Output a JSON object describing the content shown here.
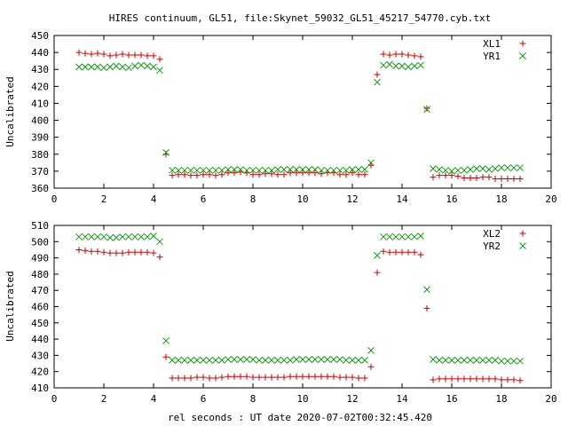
{
  "title": "HIRES continuum, GL51, file:Skynet_59032_GL51_45217_54770.cyb.txt",
  "xlabel": "rel seconds : UT date 2020-07-02T00:32:45.420",
  "colors": {
    "series_a": "#cc0000",
    "series_b": "#109a10",
    "axis": "#000000"
  },
  "chart_data": [
    {
      "type": "scatter",
      "ylabel": "Uncalibrated",
      "xlim": [
        0,
        20
      ],
      "ylim": [
        360,
        450
      ],
      "xticks": [
        0,
        2,
        4,
        6,
        8,
        10,
        12,
        14,
        16,
        18,
        20
      ],
      "yticks": [
        360,
        370,
        380,
        390,
        400,
        410,
        420,
        430,
        440,
        450
      ],
      "legend_position": "top-right",
      "grid": false,
      "series": [
        {
          "name": "XL1",
          "marker": "plus",
          "x": [
            1.0,
            1.25,
            1.5,
            1.75,
            2.0,
            2.25,
            2.5,
            2.75,
            3.0,
            3.25,
            3.5,
            3.75,
            4.0,
            4.25,
            4.5,
            4.75,
            5.0,
            5.25,
            5.5,
            5.75,
            6.0,
            6.25,
            6.5,
            6.75,
            7.0,
            7.25,
            7.5,
            7.75,
            8.0,
            8.25,
            8.5,
            8.75,
            9.0,
            9.25,
            9.5,
            9.75,
            10.0,
            10.25,
            10.5,
            10.75,
            11.0,
            11.25,
            11.5,
            11.75,
            12.0,
            12.25,
            12.5,
            12.75,
            13.0,
            13.25,
            13.5,
            13.75,
            14.0,
            14.25,
            14.5,
            14.75,
            15.0,
            15.25,
            15.5,
            15.75,
            16.0,
            16.25,
            16.5,
            16.75,
            17.0,
            17.25,
            17.5,
            17.75,
            18.0,
            18.25,
            18.5,
            18.75
          ],
          "y": [
            440,
            439.5,
            439,
            439.5,
            439,
            438,
            438.5,
            439,
            438.5,
            438.5,
            438.5,
            438,
            438,
            436,
            380,
            367.5,
            368,
            368,
            367.5,
            367.5,
            368,
            368,
            367.5,
            368,
            369,
            369,
            369.5,
            369,
            368,
            368,
            368.5,
            368.5,
            368,
            368,
            369,
            369,
            369,
            369,
            369,
            368.5,
            369,
            369,
            368,
            368,
            369,
            368,
            368,
            373.5,
            427,
            439,
            438.5,
            439,
            439,
            438.5,
            438,
            437.5,
            407,
            366.5,
            367.5,
            367.5,
            367.5,
            367,
            366,
            366,
            366,
            366.5,
            366.5,
            365.5,
            365.5,
            365.5,
            365.5,
            365.5
          ]
        },
        {
          "name": "YR1",
          "marker": "x",
          "x": [
            1.0,
            1.25,
            1.5,
            1.75,
            2.0,
            2.25,
            2.5,
            2.75,
            3.0,
            3.25,
            3.5,
            3.75,
            4.0,
            4.25,
            4.5,
            4.75,
            5.0,
            5.25,
            5.5,
            5.75,
            6.0,
            6.25,
            6.5,
            6.75,
            7.0,
            7.25,
            7.5,
            7.75,
            8.0,
            8.25,
            8.5,
            8.75,
            9.0,
            9.25,
            9.5,
            9.75,
            10.0,
            10.25,
            10.5,
            10.75,
            11.0,
            11.25,
            11.5,
            11.75,
            12.0,
            12.25,
            12.5,
            12.75,
            13.0,
            13.25,
            13.5,
            13.75,
            14.0,
            14.25,
            14.5,
            14.75,
            15.0,
            15.25,
            15.5,
            15.75,
            16.0,
            16.25,
            16.5,
            16.75,
            17.0,
            17.25,
            17.5,
            17.75,
            18.0,
            18.25,
            18.5,
            18.75
          ],
          "y": [
            431.5,
            431.5,
            431.5,
            431.5,
            431,
            431.5,
            432,
            431.5,
            431,
            432,
            432.5,
            432,
            431.5,
            429.5,
            381,
            370.5,
            370.5,
            370.5,
            370.5,
            370.5,
            370.5,
            370.5,
            370.5,
            370.5,
            371,
            371,
            371,
            370.5,
            370.5,
            370.5,
            370.5,
            370.5,
            371,
            371,
            371,
            371,
            371,
            371,
            371,
            370.5,
            370.5,
            370.5,
            370.5,
            370.5,
            371,
            371,
            371,
            375,
            422.5,
            432.5,
            433,
            432,
            432,
            431.5,
            432,
            432.5,
            406.5,
            371.5,
            371,
            370.5,
            370,
            370.5,
            370.5,
            371,
            371.5,
            371.5,
            371,
            371.5,
            372,
            372,
            372,
            372
          ]
        }
      ]
    },
    {
      "type": "scatter",
      "ylabel": "Uncalibrated",
      "xlim": [
        0,
        20
      ],
      "ylim": [
        410,
        510
      ],
      "xticks": [
        0,
        2,
        4,
        6,
        8,
        10,
        12,
        14,
        16,
        18,
        20
      ],
      "yticks": [
        410,
        420,
        430,
        440,
        450,
        460,
        470,
        480,
        490,
        500,
        510
      ],
      "legend_position": "top-right",
      "grid": false,
      "series": [
        {
          "name": "XL2",
          "marker": "plus",
          "x": [
            1.0,
            1.25,
            1.5,
            1.75,
            2.0,
            2.25,
            2.5,
            2.75,
            3.0,
            3.25,
            3.5,
            3.75,
            4.0,
            4.25,
            4.5,
            4.75,
            5.0,
            5.25,
            5.5,
            5.75,
            6.0,
            6.25,
            6.5,
            6.75,
            7.0,
            7.25,
            7.5,
            7.75,
            8.0,
            8.25,
            8.5,
            8.75,
            9.0,
            9.25,
            9.5,
            9.75,
            10.0,
            10.25,
            10.5,
            10.75,
            11.0,
            11.25,
            11.5,
            11.75,
            12.0,
            12.25,
            12.5,
            12.75,
            13.0,
            13.25,
            13.5,
            13.75,
            14.0,
            14.25,
            14.5,
            14.75,
            15.0,
            15.25,
            15.5,
            15.75,
            16.0,
            16.25,
            16.5,
            16.75,
            17.0,
            17.25,
            17.5,
            17.75,
            18.0,
            18.25,
            18.5,
            18.75
          ],
          "y": [
            495,
            494.5,
            494,
            494,
            493.5,
            493,
            493,
            493,
            493.5,
            493.5,
            493.5,
            493.5,
            493,
            490.5,
            429,
            416,
            416,
            416,
            416,
            416.5,
            416.5,
            416,
            416,
            416.5,
            417,
            417,
            417,
            417,
            416.5,
            416.5,
            416.5,
            416.5,
            416.5,
            416.5,
            417,
            417,
            417,
            417,
            417,
            417,
            417,
            417,
            416.5,
            416.5,
            416.5,
            416,
            416,
            423,
            481,
            494,
            493.5,
            493.5,
            493.5,
            493.5,
            493.5,
            492,
            459,
            415,
            415.5,
            415.5,
            415.5,
            415.5,
            415.5,
            415.5,
            415.5,
            415.5,
            415.5,
            415.5,
            415,
            415,
            415,
            414.5
          ]
        },
        {
          "name": "YR2",
          "marker": "x",
          "x": [
            1.0,
            1.25,
            1.5,
            1.75,
            2.0,
            2.25,
            2.5,
            2.75,
            3.0,
            3.25,
            3.5,
            3.75,
            4.0,
            4.25,
            4.5,
            4.75,
            5.0,
            5.25,
            5.5,
            5.75,
            6.0,
            6.25,
            6.5,
            6.75,
            7.0,
            7.25,
            7.5,
            7.75,
            8.0,
            8.25,
            8.5,
            8.75,
            9.0,
            9.25,
            9.5,
            9.75,
            10.0,
            10.25,
            10.5,
            10.75,
            11.0,
            11.25,
            11.5,
            11.75,
            12.0,
            12.25,
            12.5,
            12.75,
            13.0,
            13.25,
            13.5,
            13.75,
            14.0,
            14.25,
            14.5,
            14.75,
            15.0,
            15.25,
            15.5,
            15.75,
            16.0,
            16.25,
            16.5,
            16.75,
            17.0,
            17.25,
            17.5,
            17.75,
            18.0,
            18.25,
            18.5,
            18.75
          ],
          "y": [
            503,
            503,
            503,
            503,
            503,
            502.5,
            502.5,
            503,
            503,
            503,
            503,
            503,
            503.5,
            500,
            439,
            427,
            427,
            427,
            427,
            427,
            427,
            427,
            427,
            427,
            427.5,
            427.5,
            427.5,
            427.5,
            427.5,
            427,
            427,
            427,
            427,
            427,
            427,
            427.5,
            427.5,
            427.5,
            427.5,
            427.5,
            427.5,
            427.5,
            427.5,
            427,
            427,
            427,
            427,
            433,
            491.5,
            503,
            503,
            503,
            503,
            503,
            503,
            503.5,
            470.5,
            427.5,
            427,
            427,
            427,
            427,
            427,
            427,
            427,
            427,
            427,
            427,
            426.5,
            426.5,
            426.5,
            426.5
          ]
        }
      ]
    }
  ]
}
